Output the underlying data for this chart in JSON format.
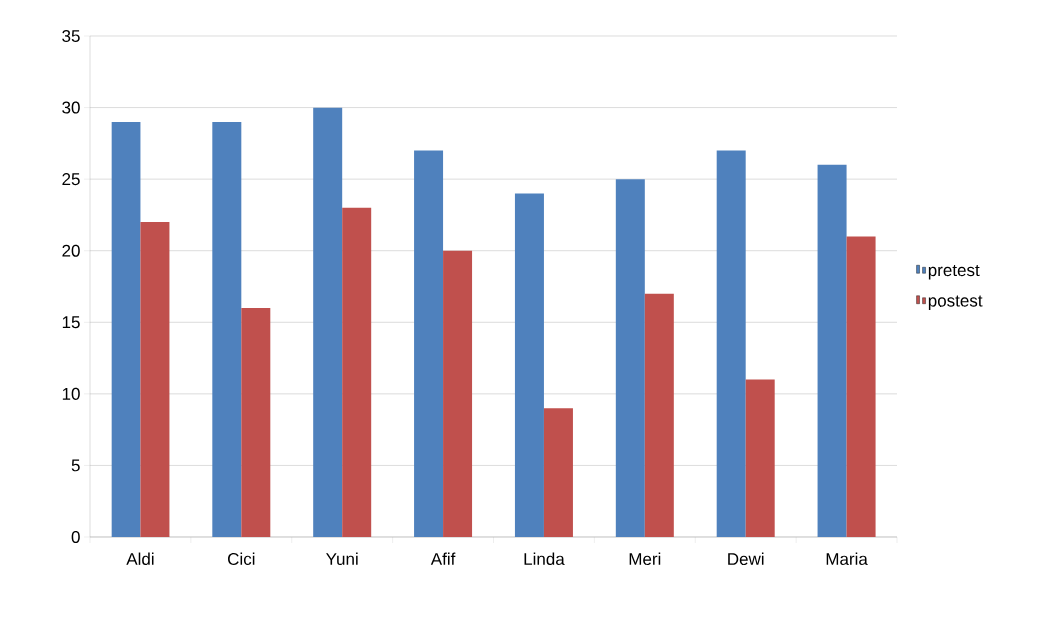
{
  "chart_data": {
    "type": "bar",
    "categories": [
      "Aldi",
      "Cici",
      "Yuni",
      "Afif",
      "Linda",
      "Meri",
      "Dewi",
      "Maria"
    ],
    "series": [
      {
        "name": "pretest",
        "color": "#4f81bd",
        "values": [
          29,
          29,
          30,
          27,
          24,
          25,
          27,
          26
        ]
      },
      {
        "name": "postest",
        "color": "#c0504d",
        "values": [
          22,
          16,
          23,
          20,
          9,
          17,
          11,
          21
        ]
      }
    ],
    "ylim": [
      0,
      35
    ],
    "yticks": [
      0,
      5,
      10,
      15,
      20,
      25,
      30,
      35
    ],
    "grid": "y",
    "legend": "right"
  }
}
